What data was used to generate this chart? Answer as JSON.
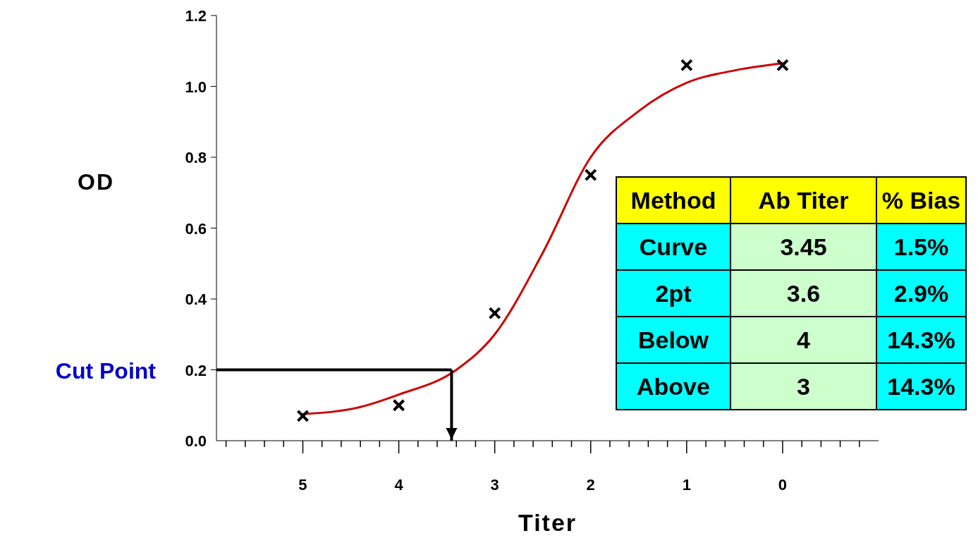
{
  "chart_data": [
    {
      "type": "line",
      "xlabel": "Titer",
      "ylabel": "OD",
      "xlim": [
        5.9,
        -1
      ],
      "ylim": [
        0,
        1.2
      ],
      "xticks": [
        {
          "value": 5.8,
          "label": null
        },
        {
          "value": 5.6,
          "label": null
        },
        {
          "value": 5.4,
          "label": null
        },
        {
          "value": 5.2,
          "label": null
        },
        5,
        {
          "value": 4.8,
          "label": null
        },
        {
          "value": 4.6,
          "label": null
        },
        {
          "value": 4.4,
          "label": null
        },
        {
          "value": 4.2,
          "label": null
        },
        4,
        {
          "value": 3.8,
          "label": null
        },
        {
          "value": 3.6,
          "label": null
        },
        {
          "value": 3.4,
          "label": null
        },
        {
          "value": 3.2,
          "label": null
        },
        3,
        {
          "value": 2.8,
          "label": null
        },
        {
          "value": 2.6,
          "label": null
        },
        {
          "value": 2.4,
          "label": null
        },
        {
          "value": 2.2,
          "label": null
        },
        2,
        {
          "value": 1.8,
          "label": null
        },
        {
          "value": 1.6,
          "label": null
        },
        {
          "value": 1.4,
          "label": null
        },
        {
          "value": 1.2,
          "label": null
        },
        1,
        {
          "value": 0.8,
          "label": null
        },
        {
          "value": 0.6,
          "label": null
        },
        {
          "value": 0.4,
          "label": null
        },
        {
          "value": 0.2,
          "label": null
        },
        0,
        {
          "value": -0.2,
          "label": null
        },
        {
          "value": -0.4,
          "label": null
        },
        {
          "value": -0.6,
          "label": null
        },
        {
          "value": -0.8,
          "label": null
        }
      ],
      "yticks": [
        {
          "value": 0,
          "label": "0.0"
        },
        {
          "value": 0.2,
          "label": "0.2"
        },
        {
          "value": 0.4,
          "label": "0.4"
        },
        {
          "value": 0.6,
          "label": "0.6"
        },
        {
          "value": 0.8,
          "label": "0.8"
        },
        {
          "value": 1,
          "label": "1.0"
        },
        {
          "value": 1.2,
          "label": "1.2"
        }
      ],
      "grid": false,
      "series": [
        {
          "type": "line",
          "color": "#cc0000",
          "marker": "none",
          "line_style": "solid",
          "x": [
            5,
            4.4,
            4,
            3.4,
            3,
            2.5,
            2,
            1.5,
            1,
            0.5,
            0
          ],
          "values": [
            0.075,
            0.095,
            0.13,
            0.2,
            0.3,
            0.53,
            0.8,
            0.93,
            1.01,
            1.045,
            1.065
          ]
        },
        {
          "type": "scatter",
          "color": "#000000",
          "marker": "cross",
          "x": [
            5,
            4,
            3,
            2,
            1,
            0
          ],
          "values": [
            0.07,
            0.1,
            0.36,
            0.75,
            1.06,
            1.06
          ]
        }
      ],
      "ref_lines": [
        {
          "axis": "y",
          "value": 0.2,
          "label": "Cut Point",
          "color": "#000000"
        },
        {
          "axis": "x",
          "value": 3.45,
          "label": null,
          "color": "#000000"
        }
      ]
    },
    {
      "type": "other",
      "categories": [
        "Method",
        "Ab Titer",
        "% Bias"
      ],
      "y_categories": [
        "Curve",
        "2pt",
        "Below",
        "Above"
      ],
      "cell_labels": [
        [
          "3.45",
          "1.5%"
        ],
        [
          "3.6",
          "2.9%"
        ],
        [
          "4",
          "14.3%"
        ],
        [
          "3",
          "14.3%"
        ]
      ],
      "colors": [
        "#ffff00",
        "#00ffff",
        "#ccffcc",
        "#00ffff"
      ]
    }
  ]
}
